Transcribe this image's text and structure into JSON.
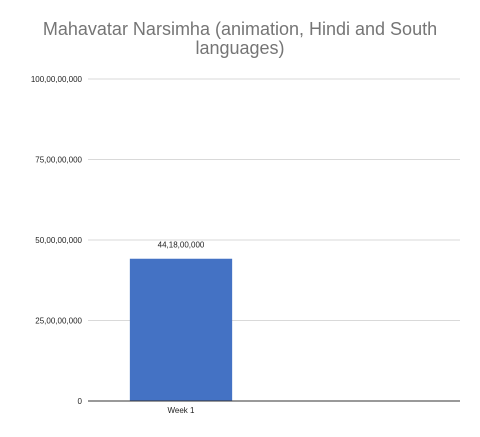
{
  "chart_data": {
    "type": "bar",
    "title": "Mahavatar Narsimha (animation, Hindi and South languages)",
    "xlabel": "",
    "ylabel": "",
    "categories": [
      "Week 1",
      ""
    ],
    "values": [
      441800000,
      null
    ],
    "value_labels": [
      "44,18,00,000",
      ""
    ],
    "ylim": [
      0,
      1000000000
    ],
    "yticks": [
      0,
      250000000,
      500000000,
      750000000,
      1000000000
    ],
    "ytick_labels": [
      "0",
      "25,00,00,000",
      "50,00,00,000",
      "75,00,00,000",
      "100,00,00,000"
    ],
    "grid": true,
    "legend": "none",
    "bar_color": "#4472c4",
    "grid_color": "#d9d9d9",
    "axis_color": "#333333",
    "title_color": "#757575"
  }
}
